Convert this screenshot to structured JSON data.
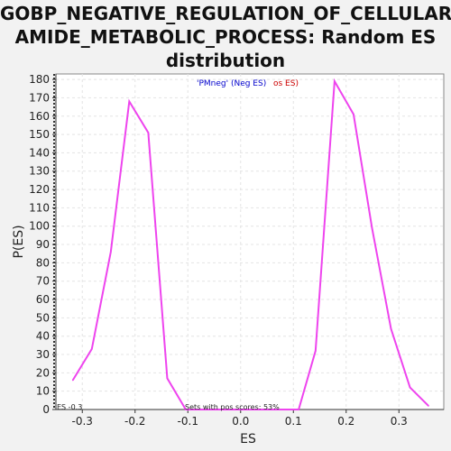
{
  "chart_data": {
    "type": "line",
    "title_lines": [
      "GOBP_NEGATIVE_REGULATION_OF_CELLULAR_",
      "AMIDE_METABOLIC_PROCESS: Random ES",
      "distribution"
    ],
    "xlabel": "ES",
    "ylabel": "P(ES)",
    "xlim": [
      -0.35,
      0.385
    ],
    "ylim": [
      0,
      183
    ],
    "x_ticks": [
      -0.3,
      -0.2,
      -0.1,
      0.0,
      0.1,
      0.2,
      0.3
    ],
    "x_tick_labels": [
      "-0.3",
      "-0.2",
      "-0.1",
      "0.0",
      "0.1",
      "0.2",
      "0.3"
    ],
    "y_ticks": [
      0,
      10,
      20,
      30,
      40,
      50,
      60,
      70,
      80,
      90,
      100,
      110,
      120,
      130,
      140,
      150,
      160,
      170,
      180
    ],
    "grid": true,
    "legend": {
      "position": "top-center",
      "entries": [
        {
          "text": "'PMneg' (Neg ES)",
          "color": "#0000cc"
        },
        {
          "text": "os ES)",
          "color": "#cc0000"
        }
      ]
    },
    "annotations": [
      {
        "text": "ES -0.3",
        "color": "#222222"
      },
      {
        "text": "Sets with pos scores: 53%",
        "color": "#222222"
      }
    ],
    "series": [
      {
        "color": "#ee44ee",
        "x": [
          -0.318,
          -0.282,
          -0.246,
          -0.211,
          -0.175,
          -0.139,
          -0.104,
          -0.068,
          -0.032,
          0.003,
          0.039,
          0.075,
          0.11,
          0.142,
          0.178,
          0.214,
          0.249,
          0.285,
          0.321,
          0.356
        ],
        "y": [
          16,
          33,
          86,
          168,
          151,
          17,
          0,
          0,
          0,
          0,
          0,
          0,
          0,
          32,
          179,
          161,
          99,
          44,
          12,
          2
        ]
      }
    ]
  }
}
